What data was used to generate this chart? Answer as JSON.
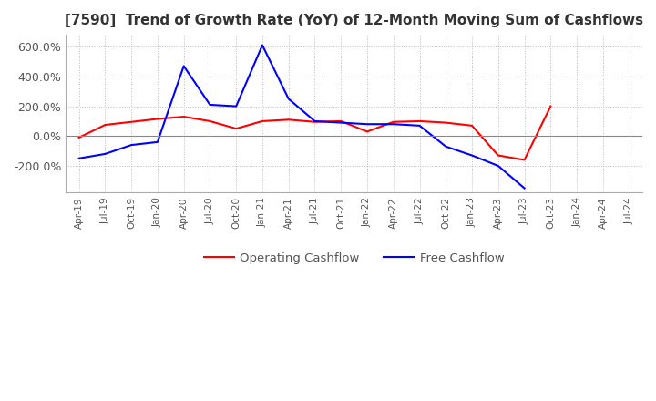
{
  "title": "[7590]  Trend of Growth Rate (YoY) of 12-Month Moving Sum of Cashflows",
  "title_fontsize": 11,
  "ylim": [
    -380,
    680
  ],
  "yticks": [
    -200,
    0,
    200,
    400,
    600
  ],
  "ytick_labels": [
    "-200.0%",
    "0.0%",
    "200.0%",
    "400.0%",
    "600.0%"
  ],
  "legend_labels": [
    "Operating Cashflow",
    "Free Cashflow"
  ],
  "operating_color": "#ff0000",
  "free_color": "#0000ff",
  "grid_color": "#bbbbbb",
  "x_labels": [
    "Apr-19",
    "Jul-19",
    "Oct-19",
    "Jan-20",
    "Apr-20",
    "Jul-20",
    "Oct-20",
    "Jan-21",
    "Apr-21",
    "Jul-21",
    "Oct-21",
    "Jan-22",
    "Apr-22",
    "Jul-22",
    "Oct-22",
    "Jan-23",
    "Apr-23",
    "Jul-23",
    "Oct-23",
    "Jan-24",
    "Apr-24",
    "Jul-24"
  ],
  "operating_cashflow": [
    -10,
    75,
    95,
    115,
    130,
    100,
    50,
    100,
    110,
    95,
    100,
    30,
    95,
    100,
    90,
    70,
    -130,
    -160,
    200,
    null,
    null,
    null
  ],
  "free_cashflow": [
    -150,
    -120,
    -60,
    -40,
    470,
    210,
    200,
    610,
    250,
    100,
    90,
    80,
    80,
    70,
    -70,
    -130,
    -200,
    -350,
    null,
    null,
    null,
    null
  ]
}
